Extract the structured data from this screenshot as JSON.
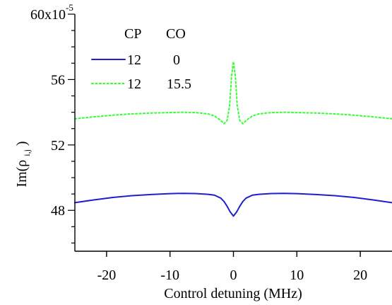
{
  "chart_data": {
    "type": "line",
    "title": "",
    "xlabel": "Control detuning (MHz)",
    "ylabel": {
      "base": "Im(ρ",
      "sub": "i,j",
      "end": ")"
    },
    "xlim": [
      -25,
      25
    ],
    "ylim": [
      45.5,
      60
    ],
    "xticks": [
      -20,
      -10,
      0,
      10,
      20
    ],
    "xtick_labels": [
      "-20",
      "-10",
      "0",
      "10",
      "20"
    ],
    "yticks": [
      48,
      52,
      56,
      60
    ],
    "ytick_labels": [
      "48",
      "52",
      "56",
      "60x10"
    ],
    "y_multiplier_exponent": "-5",
    "grid": false,
    "legend_placement": "top-left",
    "legend_header": [
      "CP",
      "CO"
    ],
    "series": [
      {
        "cp": "12",
        "co": "0",
        "color": "#1f1fd0",
        "style": "solid",
        "points": [
          [
            -25,
            48.47
          ],
          [
            -22,
            48.64
          ],
          [
            -19,
            48.79
          ],
          [
            -16,
            48.9
          ],
          [
            -13,
            48.97
          ],
          [
            -10,
            49.02
          ],
          [
            -8,
            49.04
          ],
          [
            -6,
            49.03
          ],
          [
            -4,
            48.98
          ],
          [
            -3,
            48.93
          ],
          [
            -2,
            48.75
          ],
          [
            -1.5,
            48.55
          ],
          [
            -1,
            48.25
          ],
          [
            -0.5,
            47.9
          ],
          [
            0,
            47.65
          ],
          [
            0.5,
            47.9
          ],
          [
            1,
            48.25
          ],
          [
            1.5,
            48.55
          ],
          [
            2,
            48.75
          ],
          [
            3,
            48.93
          ],
          [
            4,
            48.98
          ],
          [
            6,
            49.03
          ],
          [
            8,
            49.04
          ],
          [
            10,
            49.02
          ],
          [
            13,
            48.97
          ],
          [
            16,
            48.9
          ],
          [
            19,
            48.79
          ],
          [
            22,
            48.64
          ],
          [
            25,
            48.47
          ]
        ]
      },
      {
        "cp": "12",
        "co": "15.5",
        "color": "#33ff33",
        "style": "dotted",
        "points": [
          [
            -25,
            53.6
          ],
          [
            -22,
            53.72
          ],
          [
            -19,
            53.82
          ],
          [
            -16,
            53.9
          ],
          [
            -13,
            53.95
          ],
          [
            -10,
            53.98
          ],
          [
            -8,
            54.0
          ],
          [
            -6,
            53.98
          ],
          [
            -4,
            53.9
          ],
          [
            -3,
            53.78
          ],
          [
            -2,
            53.5
          ],
          [
            -1.5,
            53.3
          ],
          [
            -1,
            53.5
          ],
          [
            -0.6,
            54.4
          ],
          [
            -0.3,
            56.2
          ],
          [
            0,
            57.1
          ],
          [
            0.3,
            56.2
          ],
          [
            0.6,
            54.4
          ],
          [
            1,
            53.5
          ],
          [
            1.5,
            53.3
          ],
          [
            2,
            53.5
          ],
          [
            3,
            53.78
          ],
          [
            4,
            53.9
          ],
          [
            6,
            53.98
          ],
          [
            8,
            54.0
          ],
          [
            10,
            53.98
          ],
          [
            13,
            53.95
          ],
          [
            16,
            53.9
          ],
          [
            19,
            53.82
          ],
          [
            22,
            53.72
          ],
          [
            25,
            53.6
          ]
        ]
      }
    ]
  }
}
